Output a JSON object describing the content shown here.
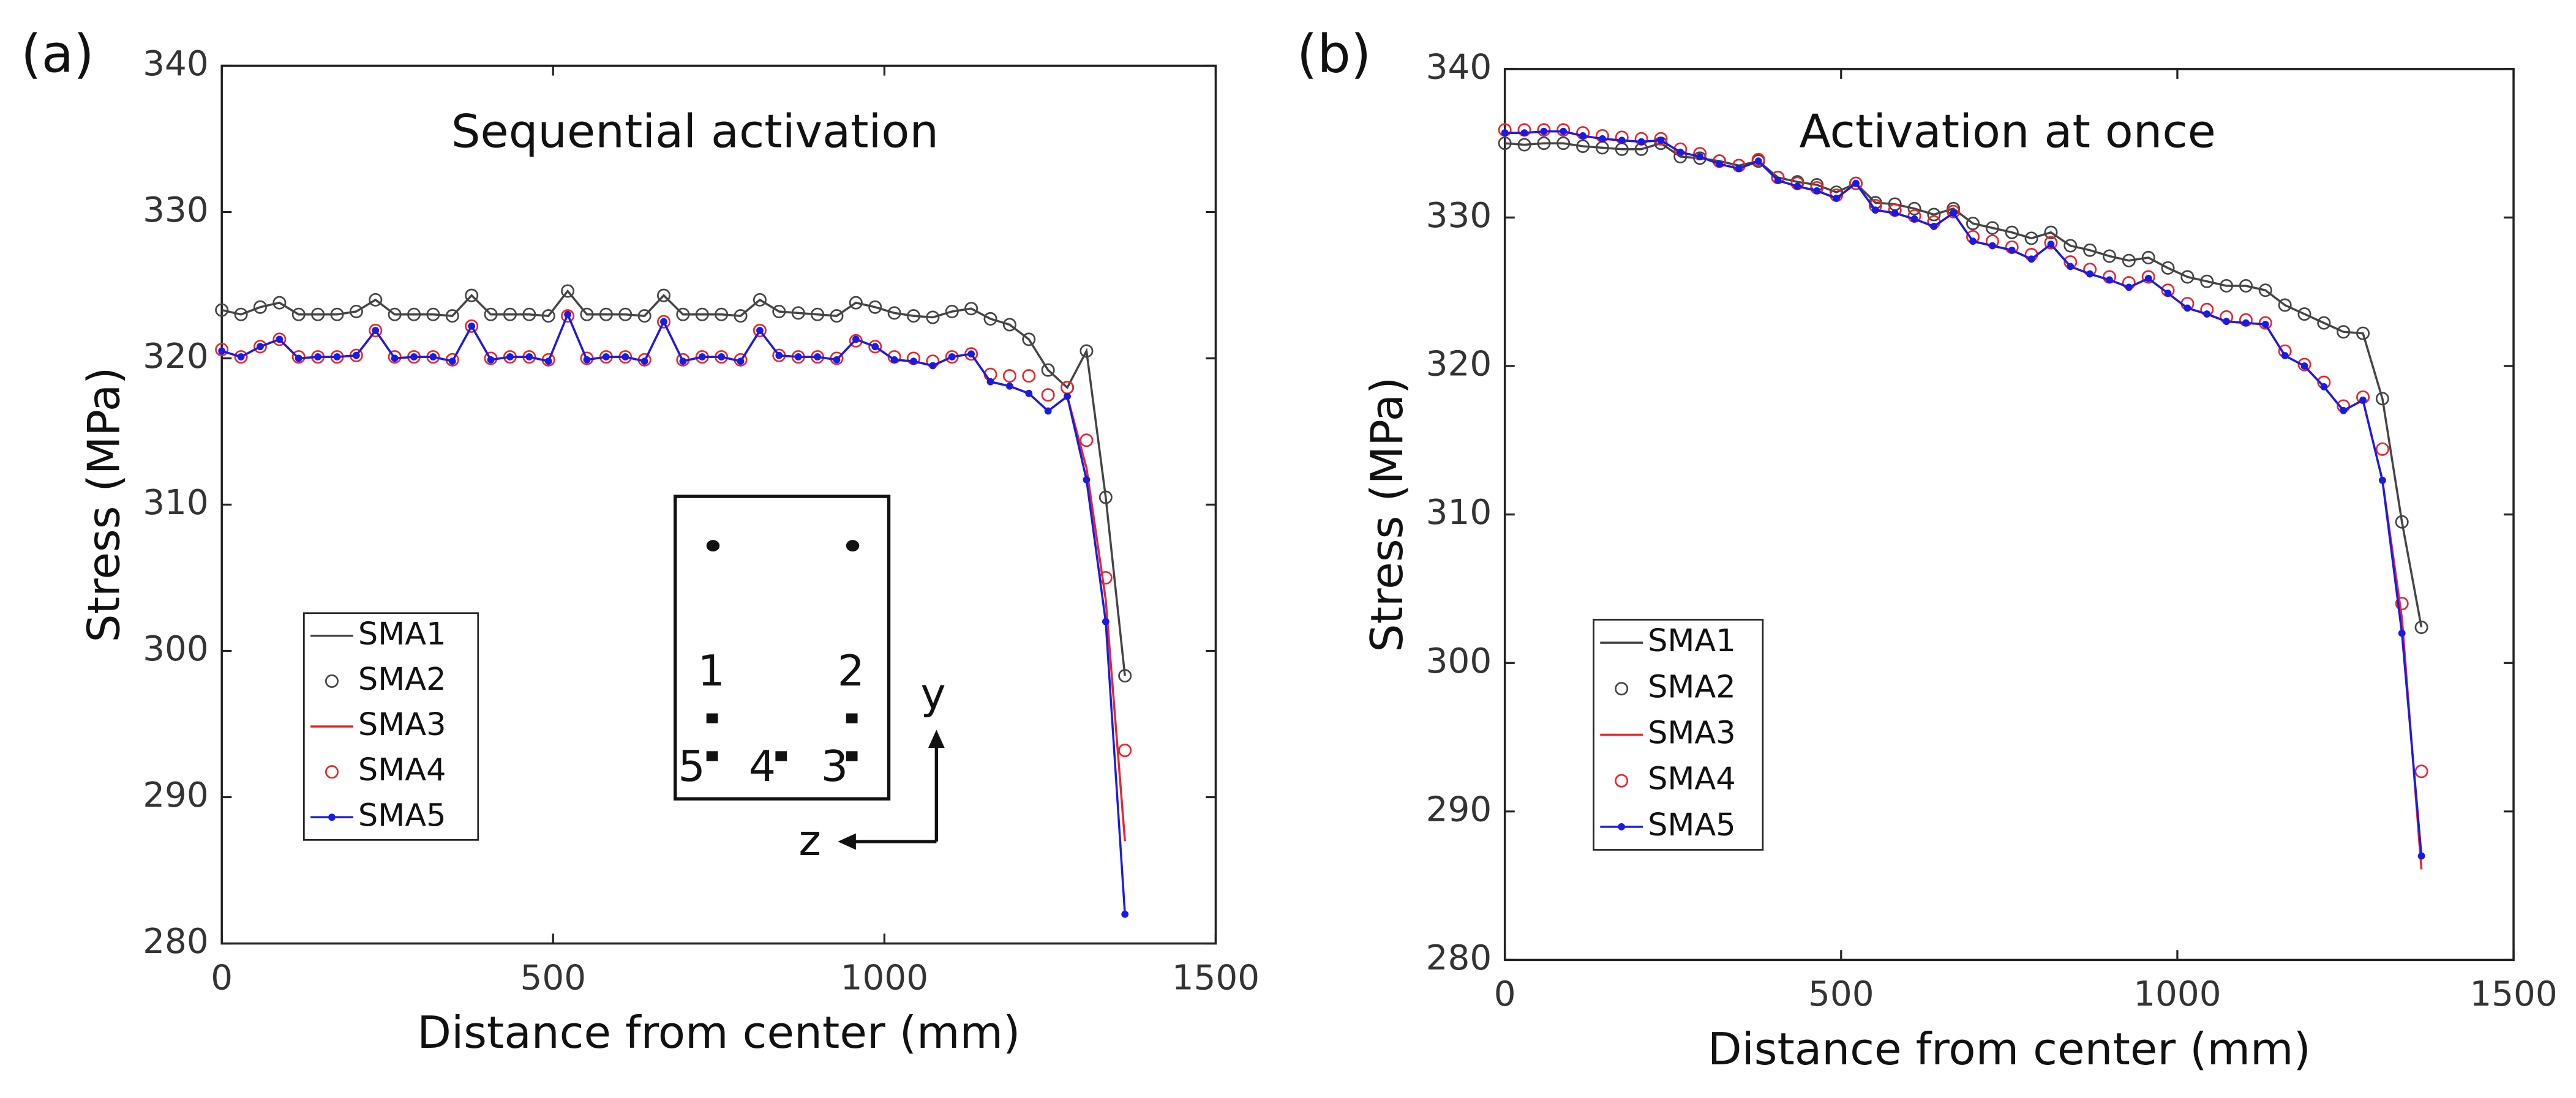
{
  "chart_data": [
    {
      "type": "line",
      "panel_label": "(a)",
      "title": "Sequential activation",
      "xlabel": "Distance from center (mm)",
      "ylabel": "Stress (MPa)",
      "xlim": [
        0,
        1500
      ],
      "xticks": [
        0,
        500,
        1000,
        1500
      ],
      "ylim": [
        280,
        340
      ],
      "yticks": [
        280,
        290,
        300,
        310,
        320,
        330,
        340
      ],
      "legend_position": "lower left",
      "x": [
        0,
        29,
        58,
        87,
        116,
        145,
        174,
        203,
        232,
        261,
        290,
        319,
        348,
        377,
        406,
        435,
        464,
        493,
        522,
        551,
        580,
        609,
        638,
        667,
        696,
        725,
        754,
        783,
        812,
        841,
        870,
        899,
        928,
        957,
        986,
        1015,
        1044,
        1073,
        1102,
        1131,
        1160,
        1189,
        1218,
        1247,
        1276,
        1305,
        1334,
        1363
      ],
      "series": [
        {
          "name": "SMA1",
          "color": "#444444",
          "line": true,
          "marker": "none",
          "values": [
            323.3,
            323.0,
            323.5,
            323.8,
            323.0,
            323.0,
            323.0,
            323.2,
            324.0,
            323.0,
            323.0,
            323.0,
            322.9,
            324.3,
            323.0,
            323.0,
            323.0,
            322.9,
            324.6,
            323.0,
            323.0,
            323.0,
            322.9,
            324.3,
            323.0,
            323.0,
            323.0,
            322.9,
            324.0,
            323.2,
            323.1,
            323.0,
            322.9,
            323.8,
            323.5,
            323.1,
            322.9,
            322.8,
            323.2,
            323.4,
            322.7,
            322.3,
            321.3,
            319.2,
            318.0,
            320.5,
            310.5,
            298.3
          ]
        },
        {
          "name": "SMA2",
          "color": "#444444",
          "line": false,
          "marker": "circle-open",
          "values": [
            323.3,
            323.0,
            323.5,
            323.8,
            323.0,
            323.0,
            323.0,
            323.2,
            324.0,
            323.0,
            323.0,
            323.0,
            322.9,
            324.3,
            323.0,
            323.0,
            323.0,
            322.9,
            324.6,
            323.0,
            323.0,
            323.0,
            322.9,
            324.3,
            323.0,
            323.0,
            323.0,
            322.9,
            324.0,
            323.2,
            323.1,
            323.0,
            322.9,
            323.8,
            323.5,
            323.1,
            322.9,
            322.8,
            323.2,
            323.4,
            322.7,
            322.3,
            321.3,
            319.2,
            318.0,
            320.5,
            310.5,
            298.3
          ]
        },
        {
          "name": "SMA3",
          "color": "#e8262a",
          "line": true,
          "marker": "none",
          "values": [
            320.5,
            320.1,
            320.8,
            321.3,
            320.0,
            320.1,
            320.1,
            320.2,
            321.9,
            320.0,
            320.1,
            320.1,
            319.8,
            322.2,
            319.9,
            320.1,
            320.1,
            319.8,
            323.0,
            319.9,
            320.1,
            320.1,
            319.8,
            322.5,
            319.8,
            320.1,
            320.1,
            319.8,
            321.9,
            320.2,
            320.1,
            320.1,
            319.9,
            321.3,
            320.8,
            319.9,
            319.8,
            319.5,
            320.1,
            320.3,
            318.4,
            318.1,
            317.6,
            316.4,
            317.4,
            312.5,
            303.5,
            287.0
          ]
        },
        {
          "name": "SMA4",
          "color": "#e8262a",
          "line": false,
          "marker": "circle-open",
          "values": [
            320.6,
            320.1,
            320.8,
            321.3,
            320.1,
            320.1,
            320.1,
            320.2,
            321.9,
            320.1,
            320.1,
            320.1,
            319.9,
            322.2,
            320.0,
            320.1,
            320.1,
            319.9,
            322.9,
            320.0,
            320.1,
            320.1,
            319.9,
            322.5,
            319.9,
            320.1,
            320.1,
            319.9,
            321.9,
            320.2,
            320.1,
            320.1,
            320.0,
            321.2,
            320.8,
            320.1,
            320.0,
            319.8,
            320.1,
            320.3,
            318.9,
            318.8,
            318.8,
            317.5,
            318.0,
            314.4,
            305.0,
            293.2
          ]
        },
        {
          "name": "SMA5",
          "color": "#1a1ae6",
          "line": true,
          "marker": "dot",
          "values": [
            320.5,
            320.1,
            320.8,
            321.3,
            320.0,
            320.1,
            320.1,
            320.2,
            321.9,
            320.0,
            320.1,
            320.1,
            319.8,
            322.2,
            319.9,
            320.1,
            320.1,
            319.8,
            323.0,
            319.9,
            320.1,
            320.1,
            319.8,
            322.5,
            319.8,
            320.1,
            320.1,
            319.8,
            321.9,
            320.2,
            320.1,
            320.1,
            319.9,
            321.3,
            320.8,
            319.9,
            319.8,
            319.5,
            320.1,
            320.3,
            318.4,
            318.1,
            317.6,
            316.4,
            317.4,
            311.7,
            302.0,
            282.0
          ]
        }
      ],
      "annotations": [
        "1",
        "2",
        "5",
        "4",
        "3",
        "y",
        "z"
      ]
    },
    {
      "type": "line",
      "panel_label": "(b)",
      "title": "Activation at once",
      "xlabel": "Distance from center (mm)",
      "ylabel": "Stress (MPa)",
      "xlim": [
        0,
        1500
      ],
      "xticks": [
        0,
        500,
        1000,
        1500
      ],
      "ylim": [
        280,
        340
      ],
      "yticks": [
        280,
        290,
        300,
        310,
        320,
        330,
        340
      ],
      "legend_position": "lower left",
      "x": [
        0,
        29,
        58,
        87,
        116,
        145,
        174,
        203,
        232,
        261,
        290,
        319,
        348,
        377,
        406,
        435,
        464,
        493,
        522,
        551,
        580,
        609,
        638,
        667,
        696,
        725,
        754,
        783,
        812,
        841,
        870,
        899,
        928,
        957,
        986,
        1015,
        1044,
        1073,
        1102,
        1131,
        1160,
        1189,
        1218,
        1247,
        1276,
        1305,
        1334,
        1363
      ],
      "series": [
        {
          "name": "SMA1",
          "color": "#444444",
          "line": true,
          "marker": "none",
          "values": [
            335.0,
            334.9,
            335.0,
            335.0,
            334.8,
            334.7,
            334.6,
            334.6,
            335.0,
            334.1,
            334.0,
            333.8,
            333.5,
            333.8,
            332.7,
            332.4,
            332.2,
            331.7,
            332.3,
            331.0,
            330.9,
            330.6,
            330.2,
            330.6,
            329.6,
            329.3,
            329.0,
            328.6,
            329.0,
            328.1,
            327.8,
            327.4,
            327.1,
            327.3,
            326.6,
            326.0,
            325.7,
            325.4,
            325.4,
            325.1,
            324.1,
            323.5,
            322.9,
            322.3,
            322.2,
            317.8,
            309.5,
            302.4
          ]
        },
        {
          "name": "SMA2",
          "color": "#444444",
          "line": false,
          "marker": "circle-open",
          "values": [
            335.0,
            334.9,
            335.0,
            335.0,
            334.8,
            334.7,
            334.6,
            334.6,
            335.0,
            334.1,
            334.0,
            333.8,
            333.5,
            333.8,
            332.7,
            332.4,
            332.2,
            331.7,
            332.3,
            331.0,
            330.9,
            330.6,
            330.2,
            330.6,
            329.6,
            329.3,
            329.0,
            328.6,
            329.0,
            328.1,
            327.8,
            327.4,
            327.1,
            327.3,
            326.6,
            326.0,
            325.7,
            325.4,
            325.4,
            325.1,
            324.1,
            323.5,
            322.9,
            322.3,
            322.2,
            317.8,
            309.5,
            302.4
          ]
        },
        {
          "name": "SMA3",
          "color": "#e8262a",
          "line": true,
          "marker": "none",
          "values": [
            335.7,
            335.7,
            335.8,
            335.8,
            335.5,
            335.3,
            335.2,
            335.1,
            335.2,
            334.4,
            334.1,
            333.6,
            333.3,
            333.8,
            332.5,
            332.1,
            331.8,
            331.3,
            332.3,
            330.5,
            330.3,
            329.9,
            329.4,
            330.3,
            328.4,
            328.1,
            327.8,
            327.2,
            328.2,
            326.7,
            326.2,
            325.8,
            325.3,
            325.9,
            324.9,
            323.9,
            323.5,
            323.0,
            322.9,
            322.8,
            320.7,
            320.0,
            318.6,
            317.0,
            317.7,
            312.3,
            303.0,
            286.1
          ]
        },
        {
          "name": "SMA4",
          "color": "#e8262a",
          "line": false,
          "marker": "circle-open",
          "values": [
            335.9,
            335.9,
            335.9,
            335.9,
            335.7,
            335.5,
            335.4,
            335.3,
            335.3,
            334.6,
            334.3,
            333.8,
            333.5,
            333.9,
            332.7,
            332.3,
            332.0,
            331.5,
            332.3,
            330.8,
            330.5,
            330.1,
            329.7,
            330.4,
            328.7,
            328.4,
            328.0,
            327.5,
            328.3,
            327.0,
            326.5,
            326.0,
            325.6,
            326.0,
            325.1,
            324.2,
            323.8,
            323.3,
            323.1,
            322.9,
            321.0,
            320.1,
            318.9,
            317.3,
            317.9,
            314.4,
            304.0,
            292.7
          ]
        },
        {
          "name": "SMA5",
          "color": "#1a1ae6",
          "line": true,
          "marker": "dot",
          "values": [
            335.7,
            335.7,
            335.8,
            335.8,
            335.5,
            335.3,
            335.2,
            335.1,
            335.2,
            334.4,
            334.1,
            333.6,
            333.3,
            333.8,
            332.5,
            332.1,
            331.8,
            331.3,
            332.3,
            330.5,
            330.3,
            329.9,
            329.4,
            330.3,
            328.4,
            328.1,
            327.8,
            327.2,
            328.2,
            326.7,
            326.2,
            325.8,
            325.3,
            325.9,
            324.9,
            323.9,
            323.5,
            323.0,
            322.9,
            322.8,
            320.7,
            320.0,
            318.6,
            317.0,
            317.7,
            312.3,
            302.0,
            287.0
          ]
        }
      ]
    }
  ]
}
